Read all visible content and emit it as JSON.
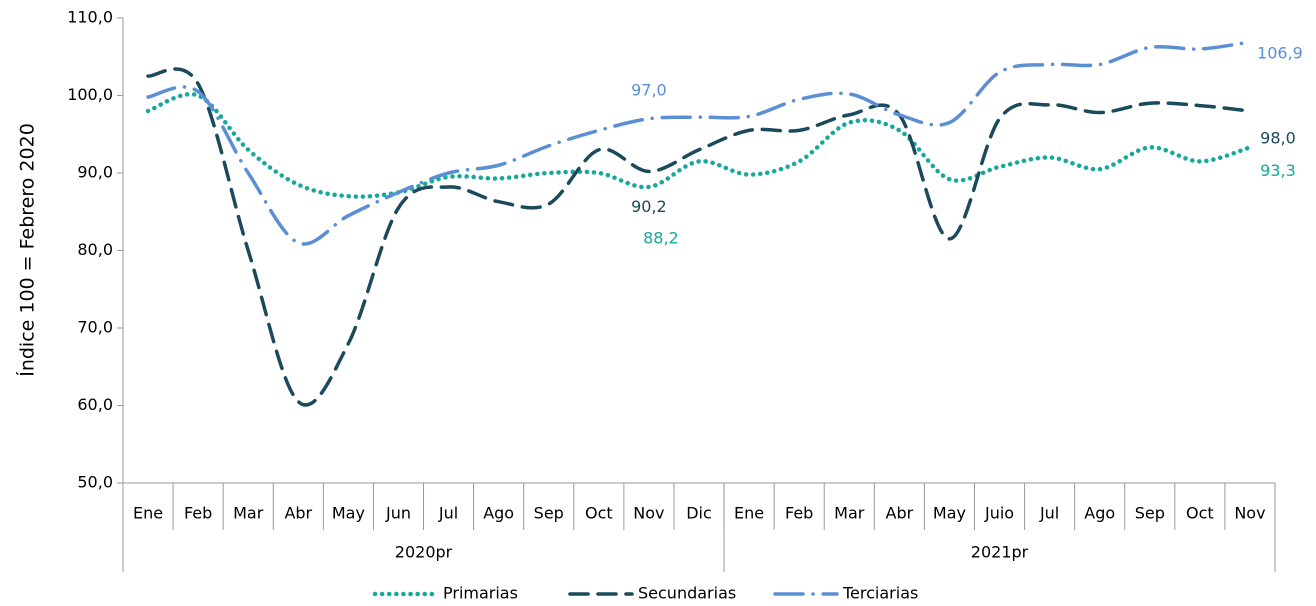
{
  "chart_data": {
    "type": "line",
    "y_label": "Índice 100 = Febrero 2020",
    "categories": [
      "Ene",
      "Feb",
      "Mar",
      "Abr",
      "May",
      "Jun",
      "Jul",
      "Ago",
      "Sep",
      "Oct",
      "Nov",
      "Dic",
      "Ene",
      "Feb",
      "Mar",
      "Abr",
      "May",
      "Juio",
      "Jul",
      "Ago",
      "Sep",
      "Oct",
      "Nov"
    ],
    "category_groups": [
      {
        "label": "2020pr",
        "span": 12
      },
      {
        "label": "2021pr",
        "span": 11
      }
    ],
    "ylim": [
      50,
      110
    ],
    "yticks": [
      {
        "value": 50,
        "label": "50,0"
      },
      {
        "value": 60,
        "label": "60,0"
      },
      {
        "value": 70,
        "label": "70,0"
      },
      {
        "value": 80,
        "label": "80,0"
      },
      {
        "value": 90,
        "label": "90,0"
      },
      {
        "value": 100,
        "label": "100,0"
      },
      {
        "value": 110,
        "label": "110,0"
      }
    ],
    "series": [
      {
        "name": "Primarias",
        "color": "#17a89c",
        "dash": "dotted",
        "values": [
          98.0,
          100.0,
          93.0,
          88.5,
          87.0,
          87.5,
          89.5,
          89.3,
          90.0,
          90.0,
          88.2,
          91.5,
          89.8,
          91.5,
          96.5,
          95.5,
          89.2,
          90.8,
          92.0,
          90.5,
          93.3,
          91.5,
          93.3
        ],
        "value_labels": [
          null,
          null,
          null,
          null,
          null,
          null,
          null,
          null,
          null,
          null,
          "88,2",
          null,
          null,
          null,
          null,
          null,
          null,
          null,
          null,
          null,
          null,
          null,
          "93,3"
        ]
      },
      {
        "name": "Secundarias",
        "color": "#1b4a5c",
        "dash": "dashed",
        "values": [
          102.5,
          101.5,
          80.0,
          60.5,
          68.0,
          85.5,
          88.2,
          86.3,
          86.0,
          93.0,
          90.2,
          93.0,
          95.5,
          95.5,
          97.5,
          97.5,
          81.5,
          97.0,
          98.8,
          97.8,
          99.0,
          98.7,
          98.0
        ],
        "value_labels": [
          null,
          null,
          null,
          null,
          null,
          null,
          null,
          null,
          null,
          null,
          "90,2",
          null,
          null,
          null,
          null,
          null,
          null,
          null,
          null,
          null,
          null,
          null,
          "98,0"
        ]
      },
      {
        "name": "Terciarias",
        "color": "#5b8fd4",
        "dash": "dashdot",
        "values": [
          99.8,
          100.5,
          90.0,
          81.0,
          84.5,
          87.5,
          90.0,
          91.0,
          93.5,
          95.5,
          97.0,
          97.2,
          97.3,
          99.5,
          100.2,
          97.5,
          96.5,
          103.0,
          104.0,
          104.0,
          106.2,
          106.0,
          106.9
        ],
        "value_labels": [
          null,
          null,
          null,
          null,
          null,
          null,
          null,
          null,
          null,
          null,
          "97,0",
          null,
          null,
          null,
          null,
          null,
          null,
          null,
          null,
          null,
          null,
          null,
          "106,9"
        ]
      }
    ]
  }
}
